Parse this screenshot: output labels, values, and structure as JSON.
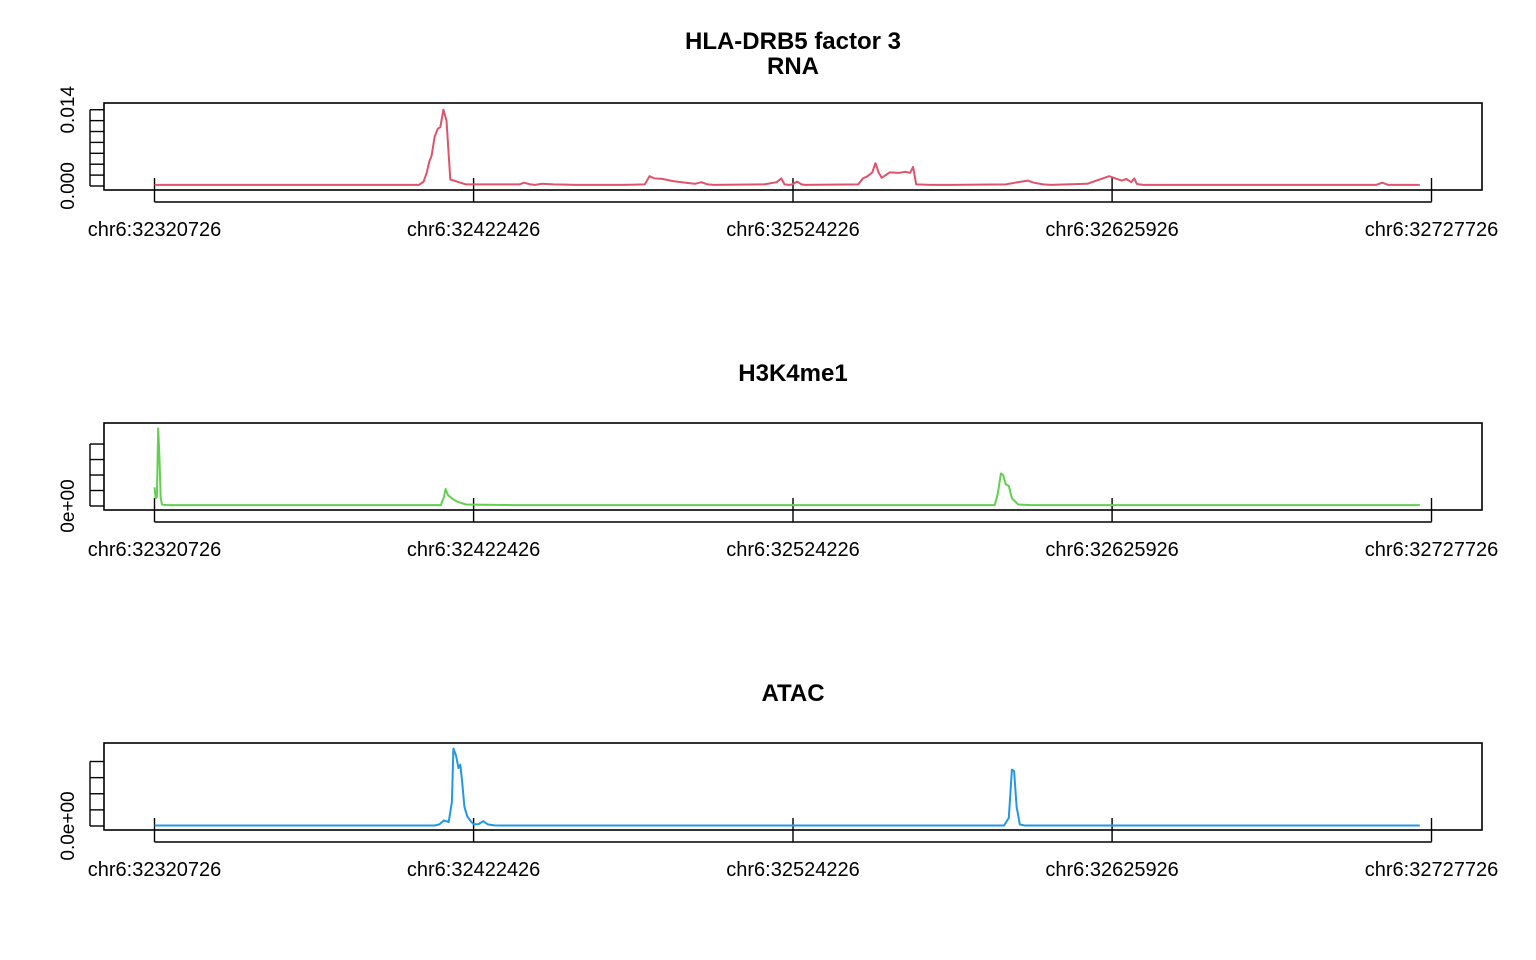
{
  "figure": {
    "title_line1": "HLA-DRB5 factor 3",
    "title_line2": "RNA"
  },
  "chart_data": [
    {
      "type": "line",
      "title": "RNA",
      "color": "#DF536B",
      "x": [
        32320726,
        32328000,
        32335000,
        32345000,
        32355000,
        32365000,
        32375000,
        32385000,
        32395000,
        32405000,
        32406500,
        32407500,
        32408300,
        32409000,
        32410000,
        32411000,
        32411800,
        32412800,
        32413800,
        32415000,
        32420000,
        32428000,
        32437000,
        32438500,
        32440500,
        32442000,
        32444000,
        32448000,
        32455000,
        32470000,
        32477000,
        32478500,
        32480000,
        32482500,
        32486000,
        32490000,
        32493000,
        32495000,
        32497000,
        32499000,
        32515000,
        32519000,
        32520500,
        32521500,
        32523000,
        32524000,
        32525500,
        32527000,
        32528000,
        32545000,
        32546500,
        32548000,
        32549500,
        32550500,
        32551500,
        32552500,
        32555000,
        32558000,
        32560000,
        32561500,
        32562500,
        32563500,
        32568000,
        32575000,
        32592000,
        32595000,
        32599000,
        32601000,
        32604000,
        32606500,
        32618000,
        32625000,
        32627000,
        32629000,
        32630500,
        32632000,
        32633000,
        32633800,
        32634500,
        32636000,
        32640000,
        32680000,
        32700000,
        32710000,
        32712000,
        32714000,
        32718000,
        32724000
      ],
      "y": [
        0.0002,
        0.0002,
        0.0002,
        0.0002,
        0.0002,
        0.0002,
        0.0002,
        0.0002,
        0.0002,
        0.0002,
        0.0008,
        0.0025,
        0.0045,
        0.0055,
        0.009,
        0.0105,
        0.0108,
        0.014,
        0.012,
        0.0012,
        0.0003,
        0.0003,
        0.0003,
        0.0006,
        0.0003,
        0.0002,
        0.0004,
        0.0003,
        0.0002,
        0.0002,
        0.0003,
        0.0018,
        0.0014,
        0.0013,
        0.0009,
        0.0006,
        0.0004,
        0.0007,
        0.0003,
        0.0002,
        0.0003,
        0.0007,
        0.0014,
        0.0003,
        0.0002,
        0.0003,
        0.0008,
        0.0003,
        0.0002,
        0.0003,
        0.0014,
        0.0018,
        0.0025,
        0.0042,
        0.0025,
        0.0015,
        0.0025,
        0.0024,
        0.0026,
        0.0024,
        0.0035,
        0.0003,
        0.0002,
        0.0002,
        0.0003,
        0.0006,
        0.001,
        0.0006,
        0.0003,
        0.0002,
        0.0004,
        0.0018,
        0.0014,
        0.001,
        0.0013,
        0.0007,
        0.0014,
        0.0004,
        0.0003,
        0.0002,
        0.0002,
        0.0002,
        0.0002,
        0.0002,
        0.0006,
        0.0002,
        0.0002,
        0.0002
      ],
      "ylim": [
        0,
        0.0145
      ],
      "yticks": [
        0,
        0.002,
        0.004,
        0.006,
        0.008,
        0.01,
        0.012,
        0.014
      ],
      "ytick_labels": [
        "0.000",
        "",
        "",
        "",
        "",
        "",
        "",
        "0.014"
      ],
      "xticks": [
        32320726,
        32422426,
        32524226,
        32625926,
        32727726
      ],
      "xtick_labels": [
        "chr6:32320726",
        "chr6:32422426",
        "chr6:32524226",
        "chr6:32625926",
        "chr6:32727726"
      ]
    },
    {
      "type": "line",
      "title": "H3K4me1",
      "color": "#61D04F",
      "x": [
        32320726,
        32321100,
        32321500,
        32321900,
        32322300,
        32322700,
        32323100,
        32323600,
        32324500,
        32330000,
        32350000,
        32380000,
        32400000,
        32412000,
        32413000,
        32413500,
        32414300,
        32415500,
        32417000,
        32420000,
        32425000,
        32435000,
        32460000,
        32500000,
        32550000,
        32580000,
        32588500,
        32589500,
        32590500,
        32591200,
        32592000,
        32593000,
        32594000,
        32596000,
        32600000,
        32650000,
        32700000,
        32724000
      ],
      "y": [
        1.2,
        0.5,
        0.6,
        5.0,
        3.2,
        0.5,
        0.1,
        0.08,
        0.06,
        0.06,
        0.06,
        0.06,
        0.06,
        0.06,
        0.6,
        1.1,
        0.7,
        0.5,
        0.3,
        0.1,
        0.08,
        0.06,
        0.06,
        0.06,
        0.06,
        0.06,
        0.06,
        0.8,
        2.1,
        2.0,
        1.4,
        1.3,
        0.5,
        0.1,
        0.06,
        0.06,
        0.06,
        0.06
      ],
      "ylim": [
        0,
        5.1
      ],
      "yticks": [
        0,
        1,
        2,
        3,
        4
      ],
      "ytick_labels": [
        "0e+00",
        "",
        "",
        "",
        ""
      ],
      "xticks": [
        32320726,
        32422426,
        32524226,
        32625926,
        32727726
      ],
      "xtick_labels": [
        "chr6:32320726",
        "chr6:32422426",
        "chr6:32524226",
        "chr6:32625926",
        "chr6:32727726"
      ]
    },
    {
      "type": "line",
      "title": "ATAC",
      "color": "#2297E6",
      "x": [
        32320726,
        32340000,
        32370000,
        32400000,
        32410000,
        32411500,
        32413000,
        32414500,
        32415500,
        32416000,
        32416800,
        32417600,
        32418200,
        32418800,
        32419500,
        32420400,
        32421500,
        32422500,
        32424000,
        32425500,
        32427000,
        32429000,
        32432000,
        32440000,
        32480000,
        32530000,
        32570000,
        32591500,
        32593000,
        32594000,
        32594700,
        32595500,
        32596500,
        32598000,
        32620000,
        32660000,
        32700000,
        32724000
      ],
      "y": [
        0.03,
        0.03,
        0.03,
        0.03,
        0.03,
        0.1,
        0.35,
        0.25,
        1.5,
        4.8,
        4.4,
        3.6,
        3.8,
        2.7,
        1.2,
        0.6,
        0.3,
        0.1,
        0.12,
        0.3,
        0.1,
        0.04,
        0.03,
        0.03,
        0.03,
        0.03,
        0.03,
        0.03,
        0.5,
        3.5,
        3.4,
        1.2,
        0.1,
        0.03,
        0.03,
        0.03,
        0.03,
        0.03
      ],
      "ylim": [
        0,
        4.9
      ],
      "yticks": [
        0,
        1,
        2,
        3,
        4
      ],
      "ytick_labels": [
        "0.0e+00",
        "",
        "",
        "",
        ""
      ],
      "xticks": [
        32320726,
        32422426,
        32524226,
        32625926,
        32727726
      ],
      "xtick_labels": [
        "chr6:32320726",
        "chr6:32422426",
        "chr6:32524226",
        "chr6:32625926",
        "chr6:32727726"
      ]
    }
  ]
}
